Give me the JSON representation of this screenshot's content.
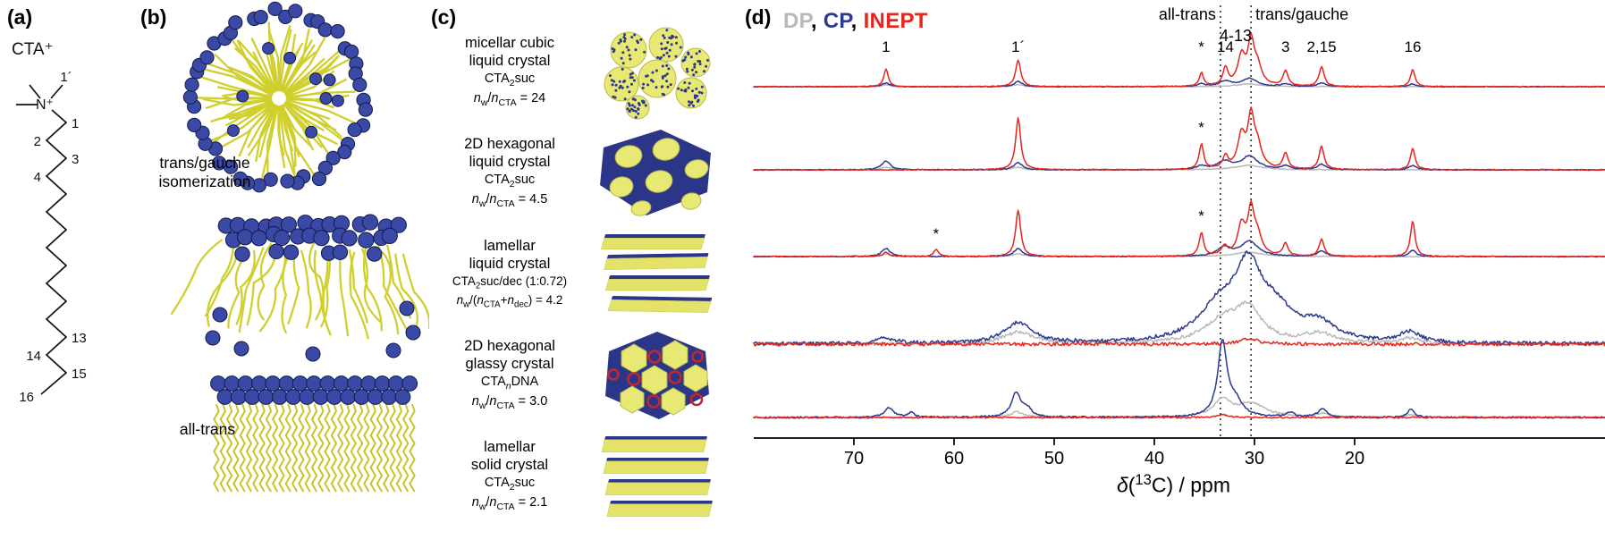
{
  "panel_a": {
    "label": "(a)",
    "molecule_name": "CTA⁺",
    "nitrogen_label": "N⁺",
    "atom_labels": [
      "1´",
      "1",
      "2",
      "3",
      "4",
      "13",
      "14",
      "15",
      "16"
    ]
  },
  "panel_b": {
    "label": "(b)",
    "caption_isomerization": [
      "trans/gauche",
      "isomerization"
    ],
    "caption_all_trans": "all-trans"
  },
  "panel_c": {
    "label": "(c)",
    "rows": [
      {
        "name_line1": "micellar cubic",
        "name_line2": "liquid crystal",
        "compound": "CTA_{2}suc",
        "ratio": "*n*_{w}/*n*_{CTA} = 24"
      },
      {
        "name_line1": "2D hexagonal",
        "name_line2": "liquid crystal",
        "compound": "CTA_{2}suc",
        "ratio": "*n*_{w}/*n*_{CTA} = 4.5"
      },
      {
        "name_line1": "lamellar",
        "name_line2": "liquid crystal",
        "compound": "CTA_{2}suc/dec (1:0.72)",
        "ratio": "*n*_{w}/(*n*_{CTA}+*n*_{dec}) = 4.2"
      },
      {
        "name_line1": "2D hexagonal",
        "name_line2": "glassy crystal",
        "compound": "CTA_{*n*}DNA",
        "ratio": "*n*_{w}/*n*_{CTA} = 3.0"
      },
      {
        "name_line1": "lamellar",
        "name_line2": "solid crystal",
        "compound": "CTA_{2}suc",
        "ratio": "*n*_{w}/*n*_{CTA} = 2.1"
      }
    ]
  },
  "panel_d": {
    "label": "(d)",
    "legend_separator": ", "
  },
  "chart_data": {
    "type": "line",
    "title": "",
    "xlabel": "*δ*(^{13}C) / ppm",
    "ylabel": "",
    "x_axis": {
      "min": -5,
      "max": 80,
      "reversed": true,
      "ticks": [
        70,
        60,
        50,
        40,
        30,
        20
      ]
    },
    "grid": false,
    "legend_position": "top-left",
    "legend": [
      {
        "label": "DP",
        "color": "#b9b9b9"
      },
      {
        "label": "CP",
        "color": "#2c3a8f"
      },
      {
        "label": "INEPT",
        "color": "#e8251c"
      }
    ],
    "guide_lines": [
      {
        "label": "all-trans",
        "ppm": 33.4
      },
      {
        "label": "trans/gauche",
        "ppm": 30.35
      }
    ],
    "envelope_label": "4-13",
    "peak_labels": [
      {
        "label": "1",
        "ppm": 66.8
      },
      {
        "label": "1´",
        "ppm": 53.6
      },
      {
        "label": "*",
        "ppm": 35.3
      },
      {
        "label": "14",
        "ppm": 32.9
      },
      {
        "label": "3",
        "ppm": 26.9
      },
      {
        "label": "2,15",
        "ppm": 23.3
      },
      {
        "label": "16",
        "ppm": 14.2
      }
    ],
    "row_markers": [
      {
        "row_index": 1,
        "ppm": 35.3,
        "label": "*",
        "dy": 42
      },
      {
        "row_index": 2,
        "ppm": 35.3,
        "label": "*",
        "dy": 40
      },
      {
        "row_index": 2,
        "ppm": 61.8,
        "label": "*",
        "dy": 20
      }
    ],
    "row_baselines": [
      97,
      190,
      287,
      385,
      467
    ],
    "rows": [
      {
        "series": {
          "DP": {
            "noise": 0.45,
            "peaks": [
              [
                66.8,
                2,
                0.5
              ],
              [
                53.6,
                2.5,
                0.5
              ],
              [
                30.6,
                3,
                1.4
              ]
            ]
          },
          "CP": {
            "noise": 0.45,
            "peaks": [
              [
                66.8,
                4,
                0.45
              ],
              [
                53.6,
                6,
                0.45
              ],
              [
                35.3,
                3,
                0.4
              ],
              [
                32.9,
                6,
                0.7
              ],
              [
                30.5,
                9,
                0.9
              ],
              [
                26.9,
                3,
                0.5
              ],
              [
                23.3,
                4,
                0.5
              ],
              [
                14.2,
                3,
                0.4
              ]
            ]
          },
          "INEPT": {
            "noise": 0.4,
            "peaks": [
              [
                66.8,
                20,
                0.26
              ],
              [
                53.6,
                30,
                0.3
              ],
              [
                35.3,
                15,
                0.25
              ],
              [
                32.9,
                20,
                0.3
              ],
              [
                31.3,
                32,
                0.45
              ],
              [
                30.35,
                46,
                0.38
              ],
              [
                29.7,
                20,
                0.5
              ],
              [
                26.9,
                17,
                0.3
              ],
              [
                23.3,
                22,
                0.3
              ],
              [
                14.2,
                19,
                0.27
              ]
            ]
          }
        }
      },
      {
        "series": {
          "DP": {
            "noise": 0.5,
            "peaks": [
              [
                66.8,
                3,
                0.6
              ],
              [
                53.6,
                3,
                0.6
              ],
              [
                30.6,
                5,
                1.6
              ]
            ]
          },
          "CP": {
            "noise": 0.5,
            "peaks": [
              [
                66.8,
                10,
                0.5
              ],
              [
                53.6,
                8,
                0.5
              ],
              [
                35.3,
                4,
                0.5
              ],
              [
                33.0,
                9,
                0.8
              ],
              [
                30.5,
                15,
                1.0
              ],
              [
                26.9,
                4,
                0.5
              ],
              [
                23.3,
                6,
                0.5
              ],
              [
                14.2,
                5,
                0.4
              ]
            ]
          },
          "INEPT": {
            "noise": 0.45,
            "peaks": [
              [
                53.6,
                58,
                0.3
              ],
              [
                35.3,
                28,
                0.27
              ],
              [
                32.9,
                14,
                0.3
              ],
              [
                31.3,
                36,
                0.45
              ],
              [
                30.35,
                54,
                0.38
              ],
              [
                29.7,
                24,
                0.5
              ],
              [
                26.9,
                18,
                0.3
              ],
              [
                23.3,
                26,
                0.3
              ],
              [
                14.2,
                24,
                0.27
              ]
            ]
          }
        }
      },
      {
        "series": {
          "DP": {
            "noise": 0.5,
            "peaks": [
              [
                66.8,
                3,
                0.6
              ],
              [
                53.6,
                3,
                0.6
              ],
              [
                30.6,
                5,
                1.6
              ]
            ]
          },
          "CP": {
            "noise": 0.5,
            "peaks": [
              [
                66.8,
                9,
                0.5
              ],
              [
                53.6,
                9,
                0.5
              ],
              [
                33.0,
                10,
                0.8
              ],
              [
                30.5,
                17,
                1.0
              ],
              [
                23.3,
                6,
                0.5
              ],
              [
                14.2,
                7,
                0.4
              ]
            ]
          },
          "INEPT": {
            "noise": 0.45,
            "peaks": [
              [
                66.8,
                5,
                0.3
              ],
              [
                61.8,
                8,
                0.28
              ],
              [
                53.6,
                52,
                0.3
              ],
              [
                35.3,
                26,
                0.27
              ],
              [
                33.0,
                10,
                0.35
              ],
              [
                31.3,
                33,
                0.45
              ],
              [
                30.35,
                48,
                0.38
              ],
              [
                29.7,
                21,
                0.5
              ],
              [
                26.9,
                14,
                0.3
              ],
              [
                23.3,
                19,
                0.3
              ],
              [
                14.2,
                40,
                0.27
              ]
            ]
          }
        }
      },
      {
        "series": {
          "DP": {
            "noise": 1.9,
            "peaks": [
              [
                53.6,
                13,
                1.8
              ],
              [
                33.2,
                24,
                2.2
              ],
              [
                30.6,
                36,
                1.6
              ],
              [
                23.6,
                11,
                1.8
              ],
              [
                14.5,
                6,
                1.2
              ]
            ]
          },
          "CP": {
            "noise": 2.1,
            "peaks": [
              [
                66.8,
                6,
                1.2
              ],
              [
                53.6,
                23,
                1.7
              ],
              [
                33.6,
                36,
                2.4
              ],
              [
                30.6,
                78,
                1.7
              ],
              [
                27.8,
                28,
                2.0
              ],
              [
                23.6,
                20,
                2.0
              ],
              [
                14.5,
                12,
                1.2
              ]
            ]
          },
          "INEPT": {
            "noise": 1.9,
            "peaks": [
              [
                30.6,
                5,
                1.5
              ]
            ]
          }
        }
      },
      {
        "series": {
          "DP": {
            "noise": 0.9,
            "peaks": [
              [
                53.7,
                6,
                0.8
              ],
              [
                33.2,
                19,
                1.0
              ],
              [
                30.3,
                15,
                1.7
              ],
              [
                23.2,
                4,
                0.8
              ],
              [
                14.4,
                3,
                0.6
              ]
            ]
          },
          "CP": {
            "noise": 0.9,
            "peaks": [
              [
                66.5,
                11,
                0.5
              ],
              [
                64.3,
                5,
                0.45
              ],
              [
                53.8,
                27,
                0.55
              ],
              [
                52.7,
                9,
                0.5
              ],
              [
                33.2,
                84,
                0.55
              ],
              [
                31.9,
                16,
                0.8
              ],
              [
                26.4,
                5,
                0.5
              ],
              [
                23.2,
                10,
                0.5
              ],
              [
                14.4,
                9,
                0.4
              ]
            ]
          },
          "INEPT": {
            "noise": 0.8,
            "peaks": [
              [
                33.2,
                3,
                0.7
              ]
            ]
          }
        }
      }
    ]
  }
}
